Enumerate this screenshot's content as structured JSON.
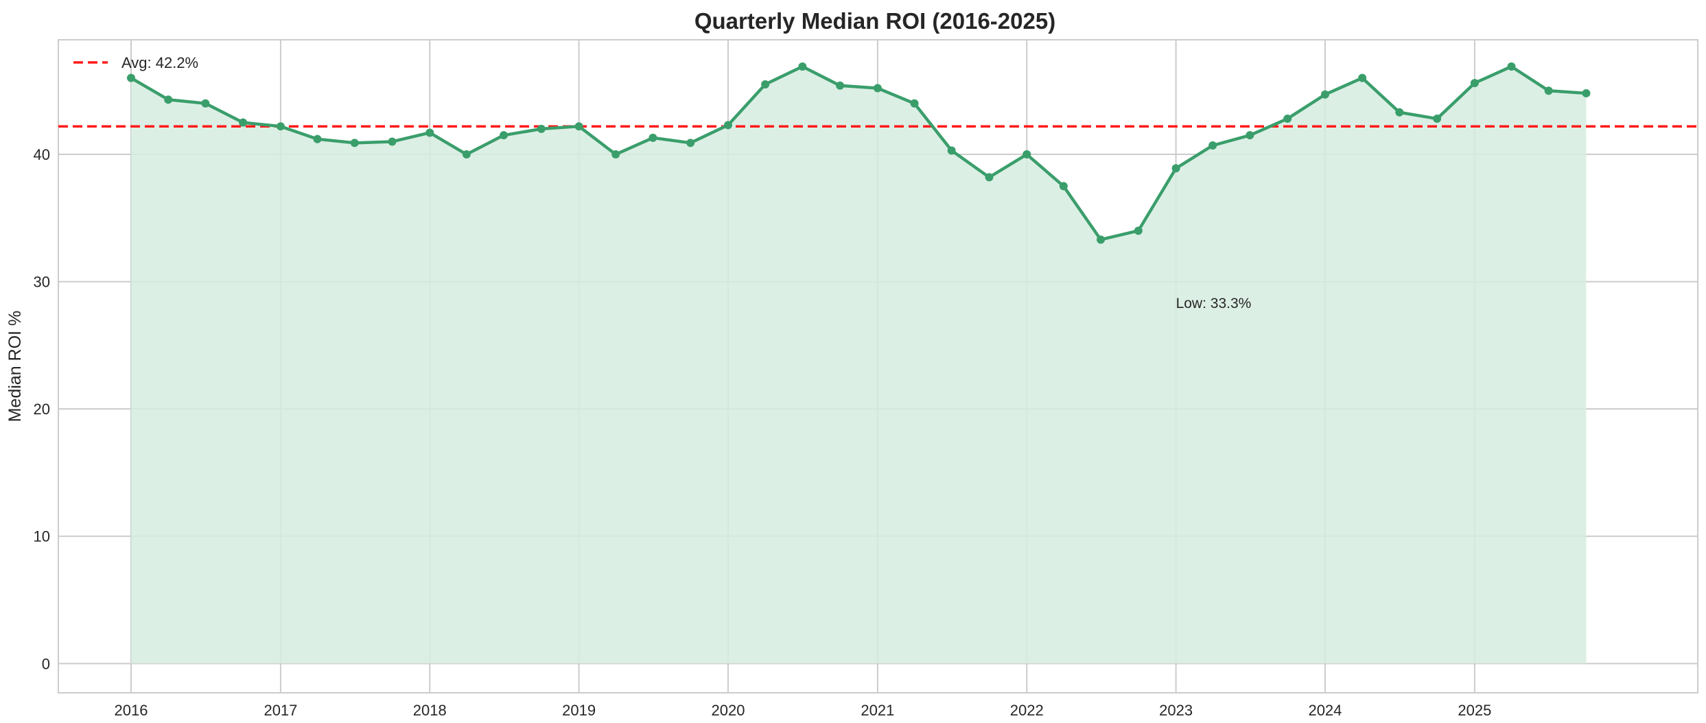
{
  "chart_data": {
    "type": "line",
    "title": "Quarterly Median ROI (2016-2025)",
    "xlabel": "",
    "ylabel": "Median ROI %",
    "x": [
      "2016-01-01",
      "2016-04-01",
      "2016-07-01",
      "2016-10-01",
      "2017-01-01",
      "2017-04-01",
      "2017-07-01",
      "2017-10-01",
      "2018-01-01",
      "2018-04-01",
      "2018-07-01",
      "2018-10-01",
      "2019-01-01",
      "2019-04-01",
      "2019-07-01",
      "2019-10-01",
      "2020-01-01",
      "2020-04-01",
      "2020-07-01",
      "2020-10-01",
      "2021-01-01",
      "2021-04-01",
      "2021-07-01",
      "2021-10-01",
      "2022-01-01",
      "2022-04-01",
      "2022-07-01",
      "2022-10-01",
      "2023-01-01",
      "2023-04-01",
      "2023-07-01",
      "2023-10-01",
      "2024-01-01",
      "2024-04-01",
      "2024-07-01",
      "2024-10-01",
      "2025-01-01",
      "2025-04-01",
      "2025-07-01",
      "2025-10-01"
    ],
    "series": [
      {
        "values": [
          46.0,
          44.3,
          44.0,
          42.5,
          42.2,
          41.2,
          40.9,
          41.0,
          41.7,
          40.0,
          41.5,
          42.0,
          42.2,
          40.0,
          41.3,
          40.9,
          42.3,
          45.5,
          46.9,
          45.4,
          45.2,
          44.0,
          40.3,
          38.2,
          40.0,
          37.5,
          33.3,
          34.0,
          38.9,
          40.7,
          41.5,
          42.8,
          44.7,
          46.0,
          43.3,
          42.8,
          45.6,
          46.9,
          45.0,
          44.8
        ],
        "color": "#3a9e6b",
        "fill": "#d6ece0"
      }
    ],
    "x_ticks": [
      "2016",
      "2017",
      "2018",
      "2019",
      "2020",
      "2021",
      "2022",
      "2023",
      "2024",
      "2025"
    ],
    "y_ticks": [
      "0",
      "10",
      "20",
      "30",
      "40"
    ],
    "ylim": [
      -2.3,
      49.0
    ],
    "xlim": [
      "2015-07-07",
      "2026-07-01"
    ],
    "reference_line": {
      "label": "Avg: 42.2%",
      "value": 42.2,
      "color": "#ff1a1a",
      "style": "dashed"
    },
    "annotation": {
      "text": "Low: 33.3%",
      "x": "2023-01-01",
      "y": 28.3
    },
    "legend": {
      "position": "top-left",
      "entries": [
        "Avg: 42.2%"
      ]
    },
    "grid": true
  }
}
